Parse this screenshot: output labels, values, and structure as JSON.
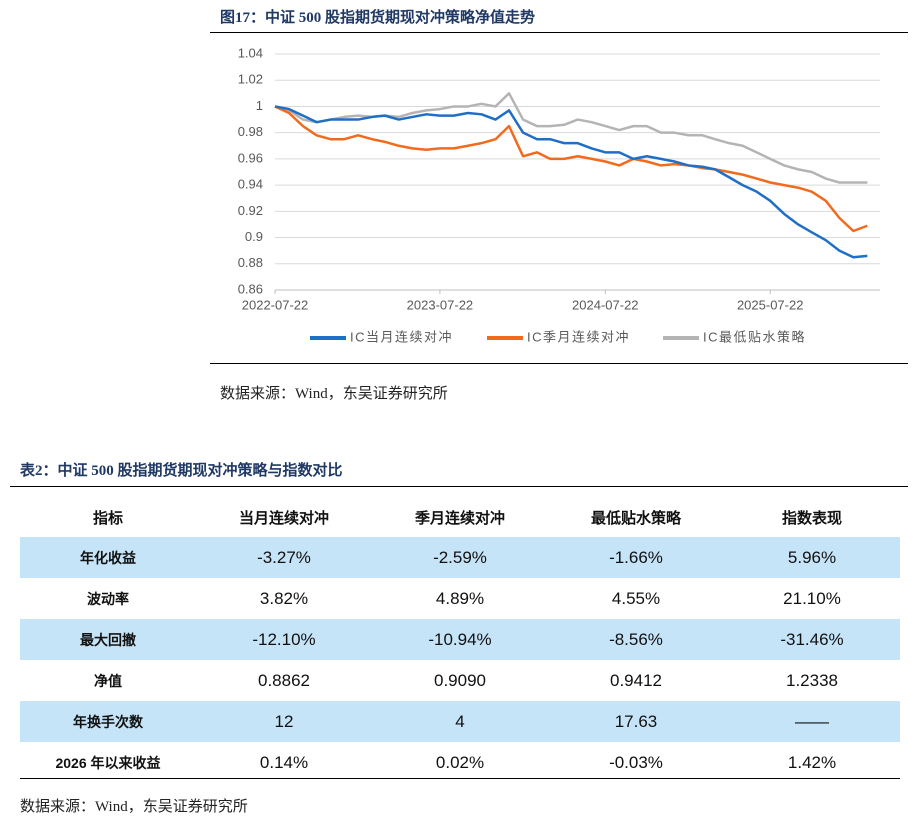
{
  "chart_data": {
    "type": "line",
    "title": "图17：中证 500 股指期货期现对冲策略净值走势",
    "x": [
      "2022-07-22",
      "2022-08-22",
      "2022-09-22",
      "2022-10-22",
      "2022-11-22",
      "2022-12-22",
      "2023-01-22",
      "2023-02-22",
      "2023-03-22",
      "2023-04-22",
      "2023-05-22",
      "2023-06-22",
      "2023-07-22",
      "2023-08-22",
      "2023-09-22",
      "2023-10-22",
      "2023-11-22",
      "2023-12-22",
      "2024-01-22",
      "2024-02-22",
      "2024-03-22",
      "2024-04-22",
      "2024-05-22",
      "2024-06-22",
      "2024-07-22",
      "2024-08-22",
      "2024-09-22",
      "2024-10-22",
      "2024-11-22",
      "2024-12-22",
      "2025-01-22",
      "2025-02-22",
      "2025-03-22",
      "2025-04-22",
      "2025-05-22",
      "2025-06-22",
      "2025-07-22",
      "2025-08-22",
      "2025-09-22",
      "2025-10-22",
      "2025-11-22",
      "2025-12-22",
      "2026-01-22",
      "2026-02-22"
    ],
    "series": [
      {
        "name": "IC当月连续对冲",
        "color": "#1f6fc6",
        "values": [
          1.0,
          0.998,
          0.993,
          0.988,
          0.99,
          0.99,
          0.99,
          0.992,
          0.993,
          0.99,
          0.992,
          0.994,
          0.993,
          0.993,
          0.995,
          0.994,
          0.99,
          0.997,
          0.98,
          0.975,
          0.975,
          0.972,
          0.972,
          0.968,
          0.965,
          0.965,
          0.96,
          0.962,
          0.96,
          0.958,
          0.955,
          0.954,
          0.952,
          0.946,
          0.94,
          0.935,
          0.928,
          0.918,
          0.91,
          0.904,
          0.898,
          0.89,
          0.885,
          0.886
        ]
      },
      {
        "name": "IC季月连续对冲",
        "color": "#f26b1d",
        "values": [
          1.0,
          0.995,
          0.985,
          0.978,
          0.975,
          0.975,
          0.978,
          0.975,
          0.973,
          0.97,
          0.968,
          0.967,
          0.968,
          0.968,
          0.97,
          0.972,
          0.975,
          0.985,
          0.962,
          0.965,
          0.96,
          0.96,
          0.962,
          0.96,
          0.958,
          0.955,
          0.96,
          0.958,
          0.955,
          0.956,
          0.955,
          0.953,
          0.952,
          0.95,
          0.948,
          0.945,
          0.942,
          0.94,
          0.938,
          0.935,
          0.928,
          0.915,
          0.905,
          0.909
        ]
      },
      {
        "name": "IC最低贴水策略",
        "color": "#b4b4b4",
        "values": [
          1.0,
          0.997,
          0.99,
          0.988,
          0.99,
          0.992,
          0.993,
          0.992,
          0.993,
          0.992,
          0.995,
          0.997,
          0.998,
          1.0,
          1.0,
          1.002,
          1.0,
          1.01,
          0.99,
          0.985,
          0.985,
          0.986,
          0.99,
          0.988,
          0.985,
          0.982,
          0.985,
          0.985,
          0.98,
          0.98,
          0.978,
          0.978,
          0.975,
          0.972,
          0.97,
          0.965,
          0.96,
          0.955,
          0.952,
          0.95,
          0.945,
          0.942,
          0.942,
          0.942
        ]
      }
    ],
    "xlim": [
      "2022-07-22",
      "2026-03-22"
    ],
    "xticks": [
      "2022-07-22",
      "2023-07-22",
      "2024-07-22",
      "2025-07-22"
    ],
    "ylim": [
      0.86,
      1.04
    ],
    "yticks": [
      0.86,
      0.88,
      0.9,
      0.92,
      0.94,
      0.96,
      0.98,
      1,
      1.02,
      1.04
    ],
    "grid": true,
    "legend": "bottom"
  },
  "source": "数据来源：Wind，东吴证券研究所",
  "table": {
    "title": "表2：中证 500 股指期货期现对冲策略与指数对比",
    "header": [
      "指标",
      "当月连续对冲",
      "季月连续对冲",
      "最低贴水策略",
      "指数表现"
    ],
    "rows": [
      [
        "年化收益",
        "-3.27%",
        "-2.59%",
        "-1.66%",
        "5.96%"
      ],
      [
        "波动率",
        "3.82%",
        "4.89%",
        "4.55%",
        "21.10%"
      ],
      [
        "最大回撤",
        "-12.10%",
        "-10.94%",
        "-8.56%",
        "-31.46%"
      ],
      [
        "净值",
        "0.8862",
        "0.9090",
        "0.9412",
        "1.2338"
      ],
      [
        "年换手次数",
        "12",
        "4",
        "17.63",
        "——"
      ],
      [
        "2026 年以来收益",
        "0.14%",
        "0.02%",
        "-0.03%",
        "1.42%"
      ]
    ],
    "source": "数据来源：Wind，东吴证券研究所"
  }
}
